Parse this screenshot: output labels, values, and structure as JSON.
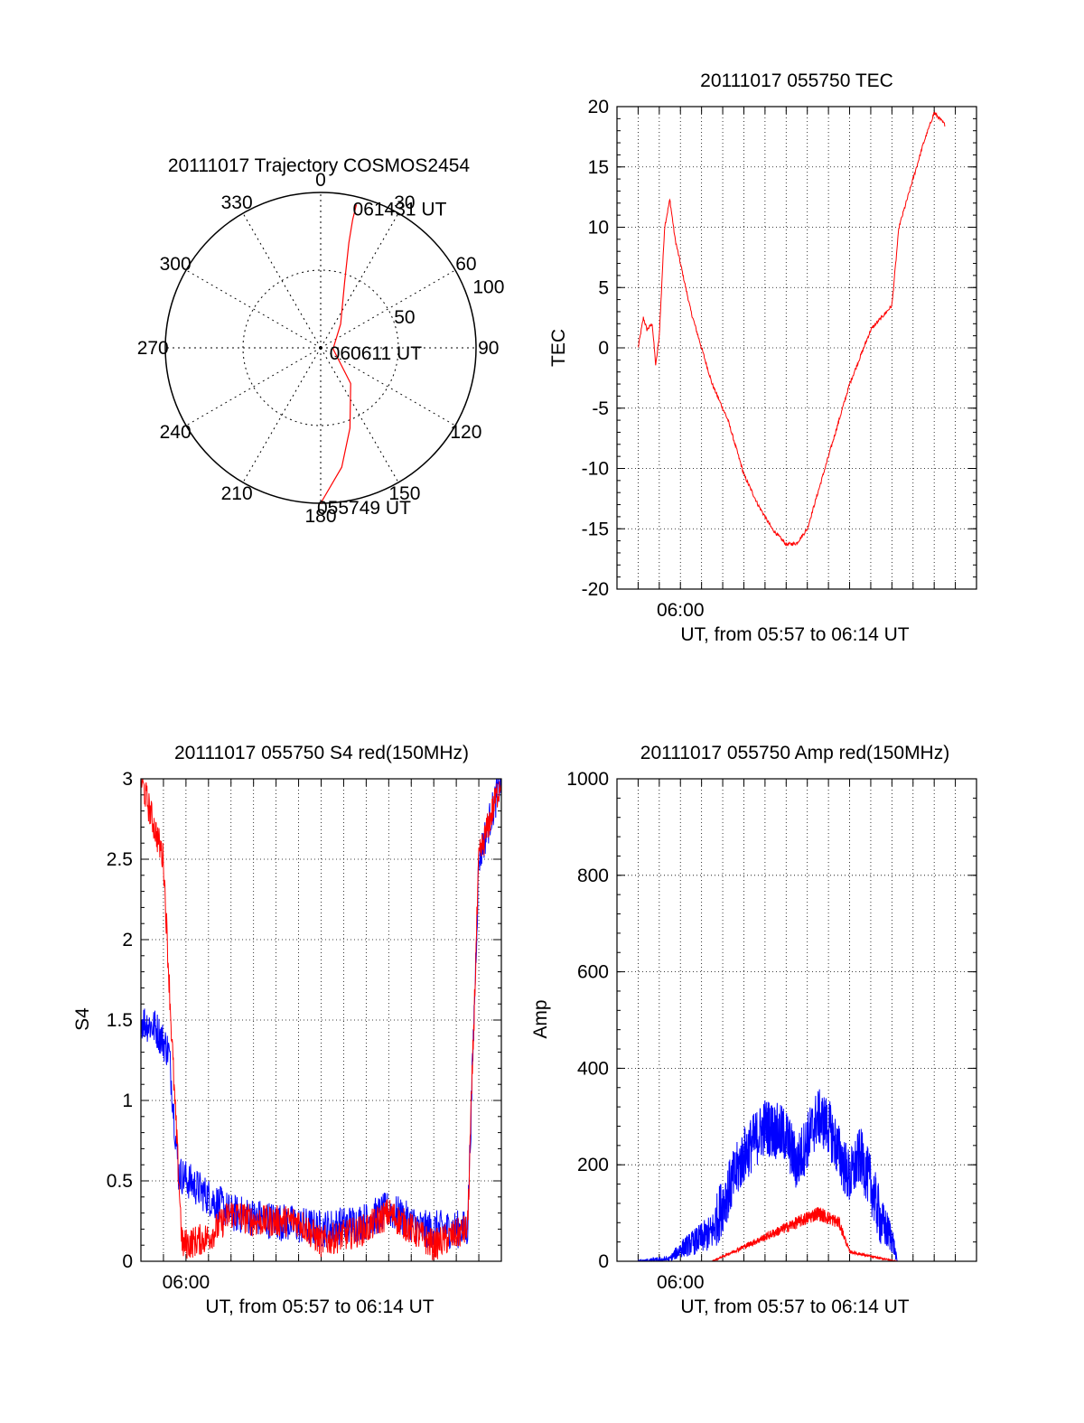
{
  "colors": {
    "red": "#ff0000",
    "blue": "#0000ff",
    "axis": "#000000"
  },
  "chart_data": [
    {
      "id": "trajectory",
      "type": "polar",
      "title": "20111017 Trajectory COSMOS2454",
      "grid": true,
      "angle_labels": [
        "0",
        "30",
        "60",
        "90",
        "120",
        "150",
        "180",
        "210",
        "240",
        "270",
        "300",
        "330"
      ],
      "radius_labels": [
        "50",
        "100"
      ],
      "rmax": 100,
      "series": [
        {
          "color": "red",
          "points": [
            {
              "az": 180,
              "r": 100
            },
            {
              "az": 170,
              "r": 78
            },
            {
              "az": 160,
              "r": 55
            },
            {
              "az": 140,
              "r": 30
            },
            {
              "az": 95,
              "r": 8
            },
            {
              "az": 40,
              "r": 20
            },
            {
              "az": 20,
              "r": 45
            },
            {
              "az": 15,
              "r": 70
            },
            {
              "az": 14,
              "r": 85
            },
            {
              "az": 14,
              "r": 95
            }
          ]
        }
      ],
      "annotations": [
        {
          "text": "061431 UT",
          "az": 14,
          "r": 95
        },
        {
          "text": "060611 UT",
          "az": 95,
          "r": 8
        },
        {
          "text": "055749 UT",
          "az": 180,
          "r": 100
        }
      ]
    },
    {
      "id": "tec",
      "type": "line",
      "title": "20111017 055750 TEC",
      "xlabel": "UT, from 05:57 to 06:14 UT",
      "ylabel": "TEC",
      "xlim": [
        "05:57",
        "06:14"
      ],
      "ylim": [
        -20,
        20
      ],
      "yticks": [
        "-20",
        "-15",
        "-10",
        "-5",
        "0",
        "5",
        "10",
        "15",
        "20"
      ],
      "xticklabels": [
        {
          "text": "06:00",
          "at": "06:00"
        }
      ],
      "grid": true,
      "series": [
        {
          "color": "red",
          "noise": 0.15,
          "points": [
            [
              "05:58:00",
              0
            ],
            [
              "05:58:15",
              2.5
            ],
            [
              "05:58:25",
              1.5
            ],
            [
              "05:58:40",
              2.0
            ],
            [
              "05:58:50",
              -1.5
            ],
            [
              "05:59:00",
              1
            ],
            [
              "05:59:15",
              10
            ],
            [
              "05:59:30",
              12.3
            ],
            [
              "05:59:45",
              9
            ],
            [
              "06:00:30",
              3
            ],
            [
              "06:01:30",
              -3
            ],
            [
              "06:02:15",
              -6
            ],
            [
              "06:03:00",
              -10.5
            ],
            [
              "06:03:40",
              -13
            ],
            [
              "06:04:20",
              -15
            ],
            [
              "06:05:00",
              -16.3
            ],
            [
              "06:05:30",
              -16.2
            ],
            [
              "06:06:00",
              -15
            ],
            [
              "06:07:00",
              -9
            ],
            [
              "06:08:00",
              -3
            ],
            [
              "06:09:00",
              1.5
            ],
            [
              "06:10:00",
              3.5
            ],
            [
              "06:10:20",
              10
            ],
            [
              "06:10:50",
              13
            ],
            [
              "06:11:30",
              17
            ],
            [
              "06:12:00",
              19.5
            ],
            [
              "06:12:30",
              18.5
            ]
          ]
        }
      ]
    },
    {
      "id": "s4",
      "type": "line",
      "title": "20111017 055750 S4 red(150MHz)",
      "xlabel": "UT, from 05:57 to 06:14 UT",
      "ylabel": "S4",
      "xlim": [
        "05:58",
        "06:14"
      ],
      "ylim": [
        0,
        3
      ],
      "yticks": [
        "0",
        "0.5",
        "1",
        "1.5",
        "2",
        "2.5",
        "3"
      ],
      "xticklabels": [
        {
          "text": "06:00",
          "at": "06:00"
        }
      ],
      "grid": true,
      "series": [
        {
          "color": "blue",
          "noise": 0.12,
          "points": [
            [
              "05:58:00",
              1.5
            ],
            [
              "05:58:40",
              1.45
            ],
            [
              "05:59:15",
              1.3
            ],
            [
              "05:59:40",
              0.55
            ],
            [
              "06:01:00",
              0.4
            ],
            [
              "06:02:00",
              0.3
            ],
            [
              "06:04:00",
              0.25
            ],
            [
              "06:06:00",
              0.2
            ],
            [
              "06:08:00",
              0.25
            ],
            [
              "06:09:00",
              0.32
            ],
            [
              "06:10:30",
              0.2
            ],
            [
              "06:12:30",
              0.2
            ],
            [
              "06:13:00",
              2.5
            ],
            [
              "06:14:00",
              3
            ]
          ]
        },
        {
          "color": "red",
          "noise": 0.1,
          "points": [
            [
              "05:58:00",
              3
            ],
            [
              "05:59:00",
              2.5
            ],
            [
              "05:59:30",
              1.0
            ],
            [
              "05:59:50",
              0.1
            ],
            [
              "06:01:00",
              0.15
            ],
            [
              "06:02:00",
              0.3
            ],
            [
              "06:03:00",
              0.25
            ],
            [
              "06:05:00",
              0.25
            ],
            [
              "06:06:00",
              0.12
            ],
            [
              "06:08:00",
              0.2
            ],
            [
              "06:09:00",
              0.3
            ],
            [
              "06:11:00",
              0.1
            ],
            [
              "06:12:30",
              0.2
            ],
            [
              "06:13:00",
              2.5
            ],
            [
              "06:14:00",
              3
            ]
          ]
        }
      ]
    },
    {
      "id": "amp",
      "type": "line",
      "title": "20111017 055750 Amp red(150MHz)",
      "xlabel": "UT, from 05:57 to 06:14 UT",
      "ylabel": "Amp",
      "xlim": [
        "05:57",
        "06:14"
      ],
      "ylim": [
        0,
        1000
      ],
      "yticks": [
        "0",
        "200",
        "400",
        "600",
        "800",
        "1000"
      ],
      "xticklabels": [
        {
          "text": "06:00",
          "at": "06:00"
        }
      ],
      "grid": true,
      "series": [
        {
          "color": "blue",
          "noise": 60,
          "points": [
            [
              "05:58:00",
              0
            ],
            [
              "05:59:30",
              5
            ],
            [
              "06:00:00",
              25
            ],
            [
              "06:01:30",
              60
            ],
            [
              "06:02:00",
              120
            ],
            [
              "06:03:00",
              220
            ],
            [
              "06:04:00",
              280
            ],
            [
              "06:05:00",
              260
            ],
            [
              "06:05:30",
              200
            ],
            [
              "06:06:30",
              300
            ],
            [
              "06:07:00",
              280
            ],
            [
              "06:08:00",
              170
            ],
            [
              "06:08:30",
              220
            ],
            [
              "06:09:00",
              160
            ],
            [
              "06:09:30",
              80
            ],
            [
              "06:10:00",
              50
            ],
            [
              "06:10:15",
              0
            ],
            [
              "06:14:00",
              0
            ]
          ]
        },
        {
          "color": "red",
          "noise": 15,
          "points": [
            [
              "05:58:00",
              0
            ],
            [
              "06:01:30",
              0
            ],
            [
              "06:02:00",
              10
            ],
            [
              "06:04:00",
              50
            ],
            [
              "06:05:30",
              80
            ],
            [
              "06:06:30",
              100
            ],
            [
              "06:07:30",
              80
            ],
            [
              "06:08:00",
              20
            ],
            [
              "06:09:00",
              10
            ],
            [
              "06:10:00",
              2
            ],
            [
              "06:10:15",
              0
            ],
            [
              "06:14:00",
              0
            ]
          ]
        }
      ]
    }
  ]
}
